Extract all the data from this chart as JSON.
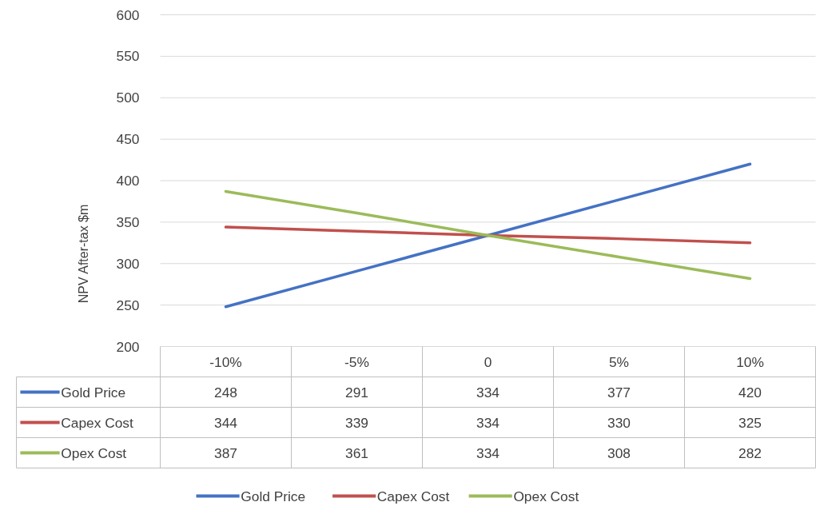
{
  "chart_data": {
    "type": "line",
    "ylabel": "NPV After-tax $m",
    "categories": [
      "-10%",
      "-5%",
      "0",
      "5%",
      "10%"
    ],
    "series": [
      {
        "name": "Gold Price",
        "color": "#4472c4",
        "values": [
          248,
          291,
          334,
          377,
          420
        ]
      },
      {
        "name": "Capex Cost",
        "color": "#c0504d",
        "values": [
          344,
          339,
          334,
          330,
          325
        ]
      },
      {
        "name": "Opex Cost",
        "color": "#9bbb59",
        "values": [
          387,
          361,
          334,
          308,
          282
        ]
      }
    ],
    "ylim": [
      200,
      600
    ],
    "yticks": [
      200,
      250,
      300,
      350,
      400,
      450,
      500,
      550,
      600
    ],
    "grid": "y",
    "legend": "bottom",
    "data_labels": true,
    "marker": "none",
    "line_style": "solid"
  }
}
